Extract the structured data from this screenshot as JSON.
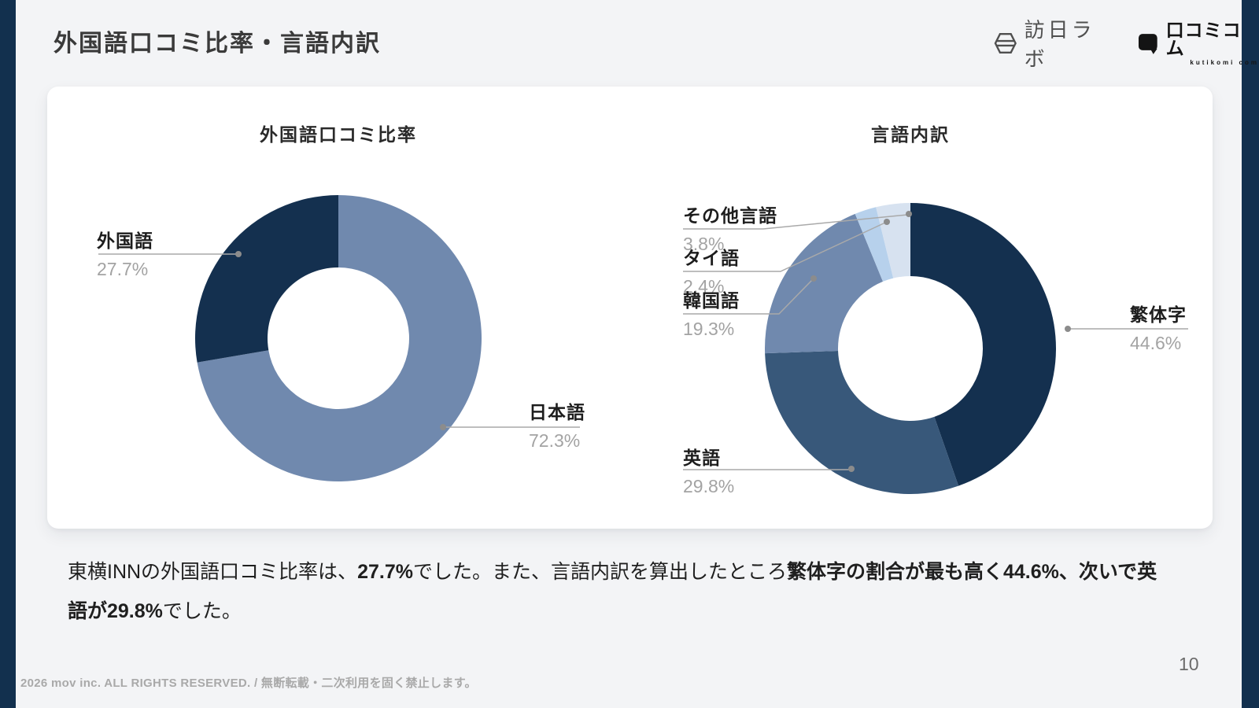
{
  "page": {
    "title": "外国語口コミ比率・言語内訳",
    "page_number": "10",
    "footer": "2026 mov inc. ALL RIGHTS RESERVED. / 無断転載・二次利用を固く禁止します。"
  },
  "logos": {
    "houjitsu_lab": "訪日ラボ",
    "kutikomi": "口コミコム",
    "kutikomi_sub": "kutikomi com"
  },
  "colors": {
    "side_bar": "#12304e",
    "navy": "#14304f",
    "steel": "#38587a",
    "slate": "#7089ae",
    "light_blue": "#b7d1ec",
    "pale_blue": "#d7e2f0",
    "leader_line": "#a9a9a9",
    "leader_dot": "#8c8c8c"
  },
  "chart_data": [
    {
      "type": "pie",
      "donut": true,
      "title": "外国語口コミ比率",
      "labels": [
        "日本語",
        "外国語"
      ],
      "values": [
        72.3,
        27.7
      ],
      "unit": "%",
      "colors": [
        "#7089ae",
        "#14304f"
      ],
      "legend_position": "callout-labels",
      "start_angle_deg": 0,
      "direction": "clockwise"
    },
    {
      "type": "pie",
      "donut": true,
      "title": "言語内訳",
      "labels": [
        "繁体字",
        "英語",
        "韓国語",
        "タイ語",
        "その他言語"
      ],
      "values": [
        44.6,
        29.8,
        19.3,
        2.4,
        3.8
      ],
      "unit": "%",
      "colors": [
        "#14304f",
        "#38587a",
        "#7089ae",
        "#b7d1ec",
        "#d7e2f0"
      ],
      "legend_position": "callout-labels",
      "start_angle_deg": 0,
      "direction": "clockwise"
    }
  ],
  "summary": {
    "segments": [
      {
        "text": "東横INNの外国語口コミ比率は、",
        "bold": false
      },
      {
        "text": "27.7%",
        "bold": true
      },
      {
        "text": "でした。また、言語内訳を算出したところ",
        "bold": false
      },
      {
        "text": "繁体字の割合が最も高く44.6%、次いで英語が29.8%",
        "bold": true
      },
      {
        "text": "でした。",
        "bold": false
      }
    ]
  }
}
